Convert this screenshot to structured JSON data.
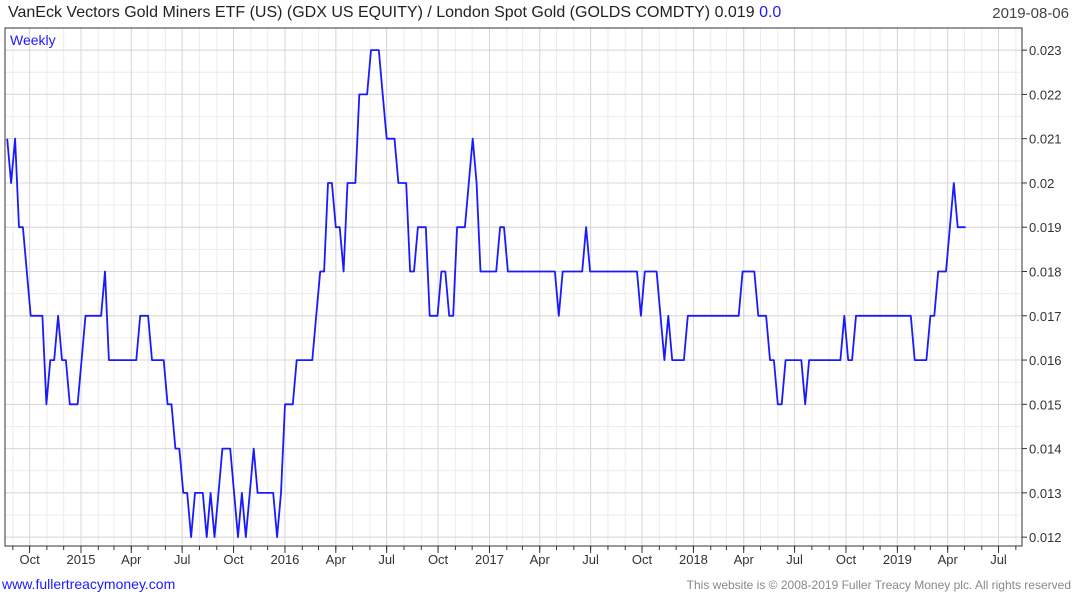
{
  "header": {
    "title": "VanEck Vectors Gold Miners ETF (US)  (GDX US EQUITY) / London Spot Gold (GOLDS COMDTY) 0.019",
    "change": "0.0",
    "date": "2019-08-06"
  },
  "footer": {
    "website": "www.fullertreacymoney.com",
    "copyright": "This website is © 2008-2019 Fuller Treacy Money plc. All rights reserved"
  },
  "colors": {
    "line": "#1a1aff",
    "grid": "#d8d8d8",
    "axis": "#333333",
    "accent": "#1a1aff"
  },
  "chart_data": {
    "type": "line",
    "title": "",
    "legend": "Weekly",
    "xlabel": "",
    "ylabel": "",
    "ylim": [
      0.0118,
      0.0235
    ],
    "xlim": [
      "2014-08-18",
      "2019-08-12"
    ],
    "y_ticks": [
      0.012,
      0.013,
      0.014,
      0.015,
      0.016,
      0.017,
      0.018,
      0.019,
      0.02,
      0.021,
      0.022,
      0.023
    ],
    "y_tick_labels": [
      "0.012",
      "0.013",
      "0.014",
      "0.015",
      "0.016",
      "0.017",
      "0.018",
      "0.019",
      "0.02",
      "0.021",
      "0.022",
      "0.023"
    ],
    "x_ticks": [
      {
        "date": "2014-10-01",
        "label": "Oct"
      },
      {
        "date": "2015-01-01",
        "label": "2015"
      },
      {
        "date": "2015-04-01",
        "label": "Apr"
      },
      {
        "date": "2015-07-01",
        "label": "Jul"
      },
      {
        "date": "2015-10-01",
        "label": "Oct"
      },
      {
        "date": "2016-01-01",
        "label": "2016"
      },
      {
        "date": "2016-04-01",
        "label": "Apr"
      },
      {
        "date": "2016-07-01",
        "label": "Jul"
      },
      {
        "date": "2016-10-01",
        "label": "Oct"
      },
      {
        "date": "2017-01-01",
        "label": "2017"
      },
      {
        "date": "2017-04-01",
        "label": "Apr"
      },
      {
        "date": "2017-07-01",
        "label": "Jul"
      },
      {
        "date": "2017-10-01",
        "label": "Oct"
      },
      {
        "date": "2018-01-01",
        "label": "2018"
      },
      {
        "date": "2018-04-01",
        "label": "Apr"
      },
      {
        "date": "2018-07-01",
        "label": "Jul"
      },
      {
        "date": "2018-10-01",
        "label": "Oct"
      },
      {
        "date": "2019-01-01",
        "label": "2019"
      },
      {
        "date": "2019-04-01",
        "label": "Apr"
      },
      {
        "date": "2019-07-01",
        "label": "Jul"
      }
    ],
    "grid": true,
    "series": [
      {
        "name": "Weekly",
        "points": [
          [
            "2014-08-22",
            0.021
          ],
          [
            "2014-08-29",
            0.02
          ],
          [
            "2014-09-05",
            0.021
          ],
          [
            "2014-09-12",
            0.019
          ],
          [
            "2014-09-19",
            0.019
          ],
          [
            "2014-09-26",
            0.018
          ],
          [
            "2014-10-03",
            0.017
          ],
          [
            "2014-10-10",
            0.017
          ],
          [
            "2014-10-17",
            0.017
          ],
          [
            "2014-10-24",
            0.017
          ],
          [
            "2014-10-31",
            0.015
          ],
          [
            "2014-11-07",
            0.016
          ],
          [
            "2014-11-14",
            0.016
          ],
          [
            "2014-11-21",
            0.017
          ],
          [
            "2014-11-28",
            0.016
          ],
          [
            "2014-12-05",
            0.016
          ],
          [
            "2014-12-12",
            0.015
          ],
          [
            "2014-12-19",
            0.015
          ],
          [
            "2014-12-26",
            0.015
          ],
          [
            "2015-01-02",
            0.016
          ],
          [
            "2015-01-09",
            0.017
          ],
          [
            "2015-01-16",
            0.017
          ],
          [
            "2015-01-23",
            0.017
          ],
          [
            "2015-01-30",
            0.017
          ],
          [
            "2015-02-06",
            0.017
          ],
          [
            "2015-02-13",
            0.018
          ],
          [
            "2015-02-20",
            0.016
          ],
          [
            "2015-02-27",
            0.016
          ],
          [
            "2015-03-06",
            0.016
          ],
          [
            "2015-03-13",
            0.016
          ],
          [
            "2015-03-20",
            0.016
          ],
          [
            "2015-03-27",
            0.016
          ],
          [
            "2015-04-03",
            0.016
          ],
          [
            "2015-04-10",
            0.016
          ],
          [
            "2015-04-17",
            0.017
          ],
          [
            "2015-04-24",
            0.017
          ],
          [
            "2015-05-01",
            0.017
          ],
          [
            "2015-05-08",
            0.016
          ],
          [
            "2015-05-15",
            0.016
          ],
          [
            "2015-05-22",
            0.016
          ],
          [
            "2015-05-29",
            0.016
          ],
          [
            "2015-06-05",
            0.015
          ],
          [
            "2015-06-12",
            0.015
          ],
          [
            "2015-06-19",
            0.014
          ],
          [
            "2015-06-26",
            0.014
          ],
          [
            "2015-07-03",
            0.013
          ],
          [
            "2015-07-10",
            0.013
          ],
          [
            "2015-07-17",
            0.012
          ],
          [
            "2015-07-24",
            0.013
          ],
          [
            "2015-07-31",
            0.013
          ],
          [
            "2015-08-07",
            0.013
          ],
          [
            "2015-08-14",
            0.012
          ],
          [
            "2015-08-21",
            0.013
          ],
          [
            "2015-08-28",
            0.012
          ],
          [
            "2015-09-04",
            0.013
          ],
          [
            "2015-09-11",
            0.014
          ],
          [
            "2015-09-18",
            0.014
          ],
          [
            "2015-09-25",
            0.014
          ],
          [
            "2015-10-02",
            0.013
          ],
          [
            "2015-10-09",
            0.012
          ],
          [
            "2015-10-16",
            0.013
          ],
          [
            "2015-10-23",
            0.012
          ],
          [
            "2015-10-30",
            0.013
          ],
          [
            "2015-11-06",
            0.014
          ],
          [
            "2015-11-13",
            0.013
          ],
          [
            "2015-11-20",
            0.013
          ],
          [
            "2015-11-27",
            0.013
          ],
          [
            "2015-12-04",
            0.013
          ],
          [
            "2015-12-11",
            0.013
          ],
          [
            "2015-12-18",
            0.012
          ],
          [
            "2015-12-25",
            0.013
          ],
          [
            "2016-01-01",
            0.015
          ],
          [
            "2016-01-08",
            0.015
          ],
          [
            "2016-01-15",
            0.015
          ],
          [
            "2016-01-22",
            0.016
          ],
          [
            "2016-01-29",
            0.016
          ],
          [
            "2016-02-05",
            0.016
          ],
          [
            "2016-02-12",
            0.016
          ],
          [
            "2016-02-19",
            0.016
          ],
          [
            "2016-02-26",
            0.017
          ],
          [
            "2016-03-04",
            0.018
          ],
          [
            "2016-03-11",
            0.018
          ],
          [
            "2016-03-18",
            0.02
          ],
          [
            "2016-03-25",
            0.02
          ],
          [
            "2016-04-01",
            0.019
          ],
          [
            "2016-04-08",
            0.019
          ],
          [
            "2016-04-15",
            0.018
          ],
          [
            "2016-04-22",
            0.02
          ],
          [
            "2016-04-29",
            0.02
          ],
          [
            "2016-05-06",
            0.02
          ],
          [
            "2016-05-13",
            0.022
          ],
          [
            "2016-05-20",
            0.022
          ],
          [
            "2016-05-27",
            0.022
          ],
          [
            "2016-06-03",
            0.023
          ],
          [
            "2016-06-10",
            0.023
          ],
          [
            "2016-06-17",
            0.023
          ],
          [
            "2016-06-24",
            0.022
          ],
          [
            "2016-07-01",
            0.021
          ],
          [
            "2016-07-08",
            0.021
          ],
          [
            "2016-07-15",
            0.021
          ],
          [
            "2016-07-22",
            0.02
          ],
          [
            "2016-07-29",
            0.02
          ],
          [
            "2016-08-05",
            0.02
          ],
          [
            "2016-08-12",
            0.018
          ],
          [
            "2016-08-19",
            0.018
          ],
          [
            "2016-08-26",
            0.019
          ],
          [
            "2016-09-02",
            0.019
          ],
          [
            "2016-09-09",
            0.019
          ],
          [
            "2016-09-16",
            0.017
          ],
          [
            "2016-09-23",
            0.017
          ],
          [
            "2016-09-30",
            0.017
          ],
          [
            "2016-10-07",
            0.018
          ],
          [
            "2016-10-14",
            0.018
          ],
          [
            "2016-10-21",
            0.017
          ],
          [
            "2016-10-28",
            0.017
          ],
          [
            "2016-11-04",
            0.019
          ],
          [
            "2016-11-11",
            0.019
          ],
          [
            "2016-11-18",
            0.019
          ],
          [
            "2016-11-25",
            0.02
          ],
          [
            "2016-12-02",
            0.021
          ],
          [
            "2016-12-09",
            0.02
          ],
          [
            "2016-12-16",
            0.018
          ],
          [
            "2016-12-23",
            0.018
          ],
          [
            "2016-12-30",
            0.018
          ],
          [
            "2017-01-06",
            0.018
          ],
          [
            "2017-01-13",
            0.018
          ],
          [
            "2017-01-20",
            0.019
          ],
          [
            "2017-01-27",
            0.019
          ],
          [
            "2017-02-03",
            0.018
          ],
          [
            "2017-02-10",
            0.018
          ],
          [
            "2017-02-17",
            0.018
          ],
          [
            "2017-02-24",
            0.018
          ],
          [
            "2017-03-03",
            0.018
          ],
          [
            "2017-03-10",
            0.018
          ],
          [
            "2017-03-17",
            0.018
          ],
          [
            "2017-03-24",
            0.018
          ],
          [
            "2017-03-31",
            0.018
          ],
          [
            "2017-04-07",
            0.018
          ],
          [
            "2017-04-14",
            0.018
          ],
          [
            "2017-04-21",
            0.018
          ],
          [
            "2017-04-28",
            0.018
          ],
          [
            "2017-05-05",
            0.017
          ],
          [
            "2017-05-12",
            0.018
          ],
          [
            "2017-05-19",
            0.018
          ],
          [
            "2017-05-26",
            0.018
          ],
          [
            "2017-06-02",
            0.018
          ],
          [
            "2017-06-09",
            0.018
          ],
          [
            "2017-06-16",
            0.018
          ],
          [
            "2017-06-23",
            0.019
          ],
          [
            "2017-06-30",
            0.018
          ],
          [
            "2017-07-07",
            0.018
          ],
          [
            "2017-07-14",
            0.018
          ],
          [
            "2017-07-21",
            0.018
          ],
          [
            "2017-07-28",
            0.018
          ],
          [
            "2017-08-04",
            0.018
          ],
          [
            "2017-08-11",
            0.018
          ],
          [
            "2017-08-18",
            0.018
          ],
          [
            "2017-08-25",
            0.018
          ],
          [
            "2017-09-01",
            0.018
          ],
          [
            "2017-09-08",
            0.018
          ],
          [
            "2017-09-15",
            0.018
          ],
          [
            "2017-09-22",
            0.018
          ],
          [
            "2017-09-29",
            0.017
          ],
          [
            "2017-10-06",
            0.018
          ],
          [
            "2017-10-13",
            0.018
          ],
          [
            "2017-10-20",
            0.018
          ],
          [
            "2017-10-27",
            0.018
          ],
          [
            "2017-11-03",
            0.017
          ],
          [
            "2017-11-10",
            0.016
          ],
          [
            "2017-11-17",
            0.017
          ],
          [
            "2017-11-24",
            0.016
          ],
          [
            "2017-12-01",
            0.016
          ],
          [
            "2017-12-08",
            0.016
          ],
          [
            "2017-12-15",
            0.016
          ],
          [
            "2017-12-22",
            0.017
          ],
          [
            "2017-12-29",
            0.017
          ],
          [
            "2018-01-05",
            0.017
          ],
          [
            "2018-01-12",
            0.017
          ],
          [
            "2018-01-19",
            0.017
          ],
          [
            "2018-01-26",
            0.017
          ],
          [
            "2018-02-02",
            0.017
          ],
          [
            "2018-02-09",
            0.017
          ],
          [
            "2018-02-16",
            0.017
          ],
          [
            "2018-02-23",
            0.017
          ],
          [
            "2018-03-02",
            0.017
          ],
          [
            "2018-03-09",
            0.017
          ],
          [
            "2018-03-16",
            0.017
          ],
          [
            "2018-03-23",
            0.017
          ],
          [
            "2018-03-30",
            0.018
          ],
          [
            "2018-04-06",
            0.018
          ],
          [
            "2018-04-13",
            0.018
          ],
          [
            "2018-04-20",
            0.018
          ],
          [
            "2018-04-27",
            0.017
          ],
          [
            "2018-05-04",
            0.017
          ],
          [
            "2018-05-11",
            0.017
          ],
          [
            "2018-05-18",
            0.016
          ],
          [
            "2018-05-25",
            0.016
          ],
          [
            "2018-06-01",
            0.015
          ],
          [
            "2018-06-08",
            0.015
          ],
          [
            "2018-06-15",
            0.016
          ],
          [
            "2018-06-22",
            0.016
          ],
          [
            "2018-06-29",
            0.016
          ],
          [
            "2018-07-06",
            0.016
          ],
          [
            "2018-07-13",
            0.016
          ],
          [
            "2018-07-20",
            0.015
          ],
          [
            "2018-07-27",
            0.016
          ],
          [
            "2018-08-03",
            0.016
          ],
          [
            "2018-08-10",
            0.016
          ],
          [
            "2018-08-17",
            0.016
          ],
          [
            "2018-08-24",
            0.016
          ],
          [
            "2018-08-31",
            0.016
          ],
          [
            "2018-09-07",
            0.016
          ],
          [
            "2018-09-14",
            0.016
          ],
          [
            "2018-09-21",
            0.016
          ],
          [
            "2018-09-28",
            0.017
          ],
          [
            "2018-10-05",
            0.016
          ],
          [
            "2018-10-12",
            0.016
          ],
          [
            "2018-10-19",
            0.017
          ],
          [
            "2018-10-26",
            0.017
          ],
          [
            "2018-11-02",
            0.017
          ],
          [
            "2018-11-09",
            0.017
          ],
          [
            "2018-11-16",
            0.017
          ],
          [
            "2018-11-23",
            0.017
          ],
          [
            "2018-11-30",
            0.017
          ],
          [
            "2018-12-07",
            0.017
          ],
          [
            "2018-12-14",
            0.017
          ],
          [
            "2018-12-21",
            0.017
          ],
          [
            "2018-12-28",
            0.017
          ],
          [
            "2019-01-04",
            0.017
          ],
          [
            "2019-01-11",
            0.017
          ],
          [
            "2019-01-18",
            0.017
          ],
          [
            "2019-01-25",
            0.017
          ],
          [
            "2019-02-01",
            0.016
          ],
          [
            "2019-02-08",
            0.016
          ],
          [
            "2019-02-15",
            0.016
          ],
          [
            "2019-02-22",
            0.016
          ],
          [
            "2019-03-01",
            0.017
          ],
          [
            "2019-03-08",
            0.017
          ],
          [
            "2019-03-15",
            0.018
          ],
          [
            "2019-03-22",
            0.018
          ],
          [
            "2019-03-29",
            0.018
          ],
          [
            "2019-04-05",
            0.019
          ],
          [
            "2019-04-12",
            0.02
          ],
          [
            "2019-04-19",
            0.019
          ],
          [
            "2019-04-26",
            0.019
          ],
          [
            "2019-05-03",
            0.019
          ]
        ]
      }
    ]
  }
}
